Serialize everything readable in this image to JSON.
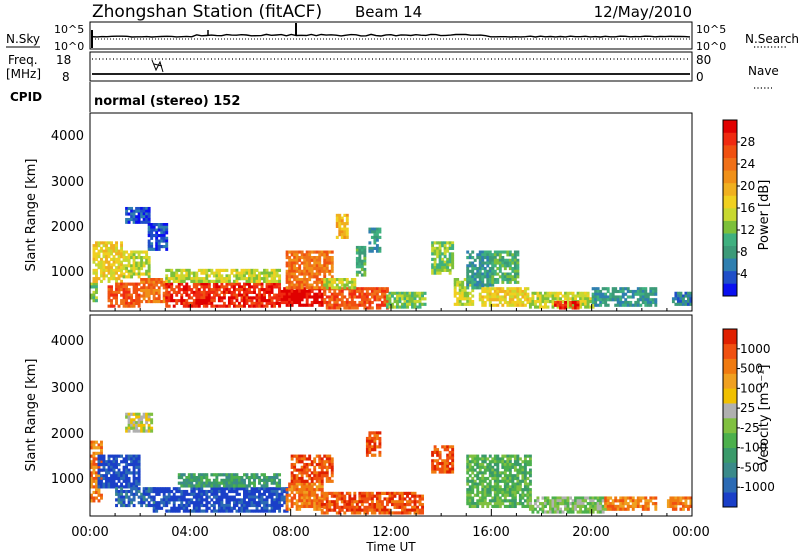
{
  "header": {
    "station": "Zhongshan Station (fitACF)",
    "beam": "Beam 14",
    "date": "12/May/2010"
  },
  "sky_panel": {
    "label": "N.Sky",
    "tick_top": "10^5",
    "tick_bottom": "10^0",
    "right_label": "N.Search",
    "right_tick_top": "10^5",
    "right_tick_bottom": "10^0"
  },
  "freq_panel": {
    "label_line1": "Freq.",
    "label_line2": "[MHz]",
    "tick_top": "18",
    "tick_bottom": "8",
    "right_label": "Nave",
    "right_tick_top": "80",
    "right_tick_bottom": "0"
  },
  "cpid_panel": {
    "label": "CPID",
    "text": "normal (stereo) 152"
  },
  "x_axis": {
    "label": "Time UT",
    "ticks": [
      "00:00",
      "04:00",
      "08:00",
      "12:00",
      "16:00",
      "20:00",
      "00:00"
    ]
  },
  "chart_data": [
    {
      "type": "heatmap",
      "ylabel": "Slant Range [km]",
      "y_ticks": [
        "1000",
        "2000",
        "3000",
        "4000"
      ],
      "xlim_hours": [
        0,
        24
      ],
      "ylim_km": [
        180,
        4500
      ],
      "colorbar": {
        "label": "Power [dB]",
        "ticks": [
          "4",
          "8",
          "12",
          "16",
          "20",
          "24",
          "28"
        ],
        "colors": [
          "#0a10f0",
          "#1f4ec8",
          "#2f7fb0",
          "#3c9a78",
          "#3fb07f",
          "#7cc03a",
          "#c8d830",
          "#f0d020",
          "#f0b020",
          "#f09018",
          "#f07018",
          "#f05010",
          "#f02a10",
          "#e00000"
        ]
      },
      "regions": [
        {
          "t0": 1.4,
          "t1": 2.3,
          "r0": 2100,
          "r1": 2450,
          "c": 1
        },
        {
          "t0": 2.3,
          "t1": 3.0,
          "r0": 1500,
          "r1": 2100,
          "c": 1
        },
        {
          "t0": 0.0,
          "t1": 0.3,
          "r0": 400,
          "r1": 800,
          "c": 5
        },
        {
          "t0": 0.1,
          "t1": 1.3,
          "r0": 800,
          "r1": 1700,
          "c": 7
        },
        {
          "t0": 1.3,
          "t1": 2.3,
          "r0": 900,
          "r1": 1500,
          "c": 6
        },
        {
          "t0": 0.7,
          "t1": 2.0,
          "r0": 300,
          "r1": 800,
          "c": 11
        },
        {
          "t0": 2.0,
          "t1": 3.0,
          "r0": 400,
          "r1": 900,
          "c": 10
        },
        {
          "t0": 3.0,
          "t1": 7.5,
          "r0": 300,
          "r1": 800,
          "c": 12
        },
        {
          "t0": 3.0,
          "t1": 7.5,
          "r0": 800,
          "r1": 1100,
          "c": 6
        },
        {
          "t0": 7.5,
          "t1": 9.3,
          "r0": 300,
          "r1": 700,
          "c": 13
        },
        {
          "t0": 7.8,
          "t1": 9.6,
          "r0": 700,
          "r1": 1500,
          "c": 10
        },
        {
          "t0": 9.3,
          "t1": 11.8,
          "r0": 250,
          "r1": 700,
          "c": 11
        },
        {
          "t0": 9.3,
          "t1": 10.5,
          "r0": 700,
          "r1": 900,
          "c": 6
        },
        {
          "t0": 11.8,
          "t1": 13.3,
          "r0": 250,
          "r1": 600,
          "c": 5
        },
        {
          "t0": 9.8,
          "t1": 10.3,
          "r0": 1800,
          "r1": 2300,
          "c": 8
        },
        {
          "t0": 10.6,
          "t1": 11.0,
          "r0": 1000,
          "r1": 1600,
          "c": 4
        },
        {
          "t0": 11.1,
          "t1": 11.5,
          "r0": 1500,
          "r1": 2000,
          "c": 3
        },
        {
          "t0": 13.6,
          "t1": 14.4,
          "r0": 1000,
          "r1": 1700,
          "c": 5
        },
        {
          "t0": 14.5,
          "t1": 15.2,
          "r0": 300,
          "r1": 900,
          "c": 6
        },
        {
          "t0": 15.0,
          "t1": 16.0,
          "r0": 700,
          "r1": 1500,
          "c": 3
        },
        {
          "t0": 16.0,
          "t1": 17.1,
          "r0": 800,
          "r1": 1500,
          "c": 4
        },
        {
          "t0": 15.5,
          "t1": 17.5,
          "r0": 300,
          "r1": 700,
          "c": 7
        },
        {
          "t0": 17.5,
          "t1": 20.0,
          "r0": 280,
          "r1": 600,
          "c": 6
        },
        {
          "t0": 18.5,
          "t1": 19.5,
          "r0": 250,
          "r1": 400,
          "c": 12
        },
        {
          "t0": 20.0,
          "t1": 22.5,
          "r0": 300,
          "r1": 700,
          "c": 3
        },
        {
          "t0": 23.2,
          "t1": 24.0,
          "r0": 300,
          "r1": 600,
          "c": 2
        }
      ]
    },
    {
      "type": "heatmap",
      "ylabel": "Slant Range [km]",
      "y_ticks": [
        "1000",
        "2000",
        "3000",
        "4000"
      ],
      "xlim_hours": [
        0,
        24
      ],
      "ylim_km": [
        180,
        4500
      ],
      "colorbar": {
        "label": "Velocity [m s⁻¹]",
        "ticks": [
          "1000",
          "500",
          "100",
          "25",
          "-25",
          "-100",
          "-500",
          "-1000"
        ],
        "colors": [
          "#1a3fc8",
          "#2b6ab4",
          "#3a8a8a",
          "#3a9a6a",
          "#4cb04c",
          "#80c040",
          "#b0b0b0",
          "#f0c000",
          "#f0a020",
          "#f07a10",
          "#f05010",
          "#e02000"
        ]
      },
      "regions": [
        {
          "t0": 1.4,
          "t1": 2.4,
          "r0": 2000,
          "r1": 2400,
          "c": 6
        },
        {
          "t0": 0.0,
          "t1": 0.5,
          "r0": 500,
          "r1": 1800,
          "c": 9
        },
        {
          "t0": 0.3,
          "t1": 2.0,
          "r0": 800,
          "r1": 1500,
          "c": 0
        },
        {
          "t0": 1.0,
          "t1": 2.5,
          "r0": 400,
          "r1": 800,
          "c": 1
        },
        {
          "t0": 2.5,
          "t1": 7.8,
          "r0": 300,
          "r1": 800,
          "c": 0
        },
        {
          "t0": 3.5,
          "t1": 7.5,
          "r0": 800,
          "r1": 1100,
          "c": 3
        },
        {
          "t0": 7.8,
          "t1": 9.2,
          "r0": 300,
          "r1": 900,
          "c": 9
        },
        {
          "t0": 8.0,
          "t1": 9.6,
          "r0": 900,
          "r1": 1500,
          "c": 10
        },
        {
          "t0": 9.2,
          "t1": 13.2,
          "r0": 250,
          "r1": 700,
          "c": 10
        },
        {
          "t0": 11.0,
          "t1": 11.5,
          "r0": 1500,
          "r1": 2000,
          "c": 10
        },
        {
          "t0": 13.6,
          "t1": 14.4,
          "r0": 1100,
          "r1": 1700,
          "c": 10
        },
        {
          "t0": 15.0,
          "t1": 17.5,
          "r0": 400,
          "r1": 1500,
          "c": 4
        },
        {
          "t0": 17.5,
          "t1": 20.5,
          "r0": 280,
          "r1": 600,
          "c": 5
        },
        {
          "t0": 20.5,
          "t1": 22.5,
          "r0": 300,
          "r1": 600,
          "c": 9
        },
        {
          "t0": 23.0,
          "t1": 24.0,
          "r0": 300,
          "r1": 600,
          "c": 9
        }
      ]
    }
  ]
}
